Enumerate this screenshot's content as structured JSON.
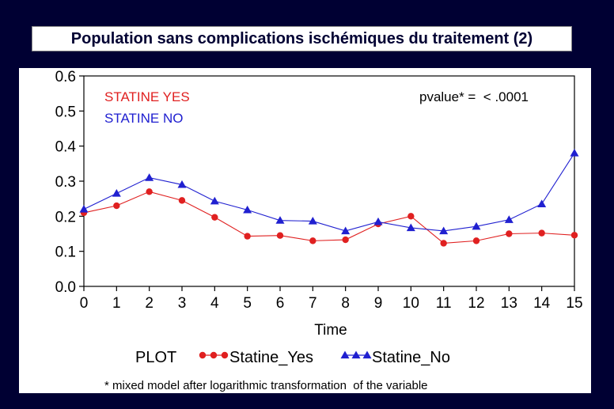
{
  "title": "Population sans complications ischémiques du traitement (2)",
  "chart_data": {
    "type": "line",
    "x": [
      0,
      1,
      2,
      3,
      4,
      5,
      6,
      7,
      8,
      9,
      10,
      11,
      12,
      13,
      14,
      15
    ],
    "series": [
      {
        "name": "Statine_Yes",
        "color": "#e02020",
        "marker": "circle",
        "values": [
          0.21,
          0.23,
          0.27,
          0.245,
          0.197,
          0.143,
          0.145,
          0.13,
          0.133,
          0.178,
          0.2,
          0.123,
          0.13,
          0.15,
          0.152,
          0.146
        ]
      },
      {
        "name": "Statine_No",
        "color": "#2020d0",
        "marker": "triangle",
        "values": [
          0.22,
          0.265,
          0.31,
          0.29,
          0.243,
          0.218,
          0.188,
          0.186,
          0.158,
          0.184,
          0.167,
          0.158,
          0.171,
          0.19,
          0.235,
          0.38
        ]
      }
    ],
    "xlabel": "Time",
    "ylabel": "",
    "xlim": [
      0,
      15
    ],
    "ylim": [
      0,
      0.6
    ],
    "yticks": [
      "0.0",
      "0.1",
      "0.2",
      "0.3",
      "0.4",
      "0.5",
      "0.6"
    ],
    "xticks": [
      "0",
      "1",
      "2",
      "3",
      "4",
      "5",
      "6",
      "7",
      "8",
      "9",
      "10",
      "11",
      "12",
      "13",
      "14",
      "15"
    ],
    "legend_title": "PLOT",
    "legend_placement": "bottom",
    "annotations": {
      "statine_yes": "STATINE YES",
      "statine_no": "STATINE NO",
      "pvalue": "pvalue* =  < .0001"
    },
    "footnote": "* mixed model after logarithmic transformation  of the variable",
    "grid": false
  }
}
